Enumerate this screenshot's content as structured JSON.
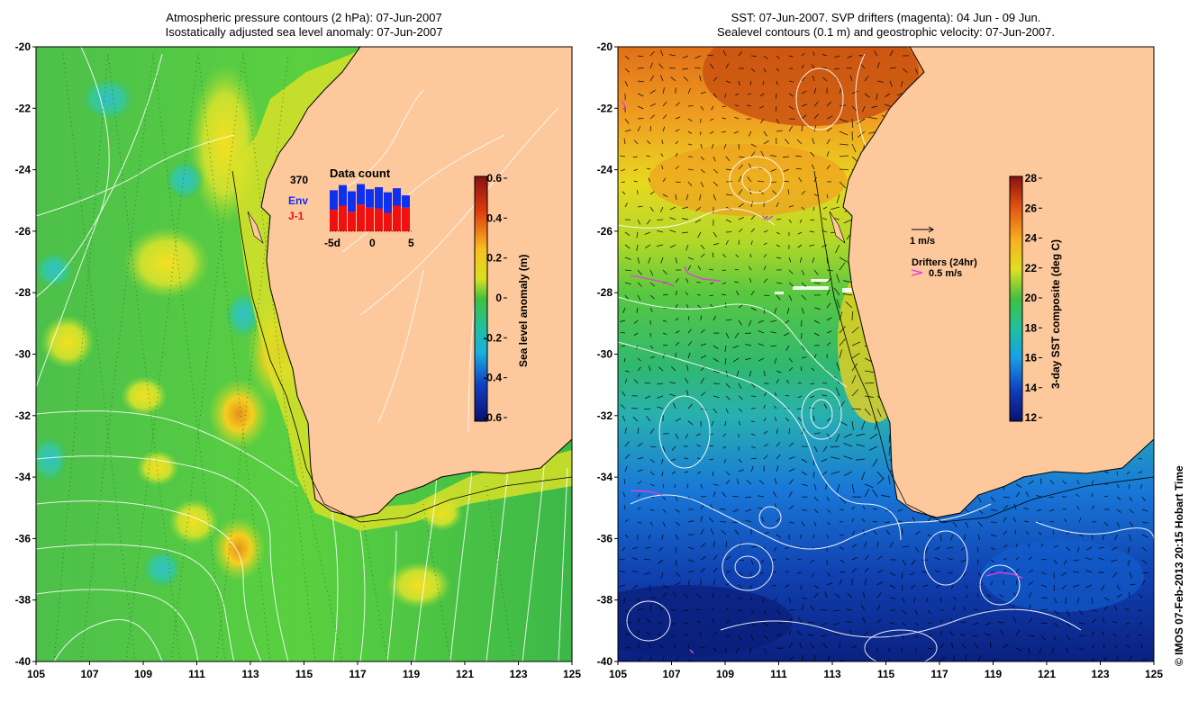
{
  "left_panel": {
    "title_line1": "Atmospheric pressure contours (2 hPa): 07-Jun-2007",
    "title_line2": "Isostatically adjusted sea level anomaly: 07-Jun-2007",
    "colorbar": {
      "label": "Sea level anomaly (m)",
      "ticks": [
        "0.6",
        "0.4",
        "0.2",
        "0",
        "-0.2",
        "-0.4",
        "-0.6"
      ]
    },
    "inset": {
      "title": "Data count",
      "max_label": "370",
      "legend_env": "Env",
      "legend_jason": "J-1",
      "x_ticks": [
        "-5d",
        "0",
        "5"
      ],
      "env_color": "#1030f0",
      "jason_color": "#f01010",
      "bars_total_fraction": [
        0.8,
        0.9,
        0.78,
        0.92,
        0.82,
        0.86,
        0.76,
        0.84,
        0.7
      ],
      "bars_jason_fraction": [
        0.42,
        0.5,
        0.38,
        0.52,
        0.46,
        0.44,
        0.36,
        0.5,
        0.46
      ]
    }
  },
  "right_panel": {
    "title_line1": "SST: 07-Jun-2007. SVP drifters (magenta): 04 Jun - 09 Jun.",
    "title_line2": "Sealevel contours (0.1 m) and geostrophic velocity: 07-Jun-2007.",
    "colorbar": {
      "label": "3-day SST composite (deg C)",
      "ticks": [
        "28",
        "26",
        "24",
        "22",
        "20",
        "18",
        "16",
        "14",
        "12"
      ]
    },
    "velocity_legend": "1 m/s",
    "drifters_legend_title": "Drifters (24hr)",
    "drifters_legend_value": "0.5 m/s"
  },
  "axes": {
    "lat_ticks": [
      "-20",
      "-22",
      "-24",
      "-26",
      "-28",
      "-30",
      "-32",
      "-34",
      "-36",
      "-38",
      "-40"
    ],
    "lon_ticks": [
      "105",
      "107",
      "109",
      "111",
      "113",
      "115",
      "117",
      "119",
      "121",
      "123",
      "125"
    ]
  },
  "credit": "© IMOS 07-Feb-2013 20:15 Hobart Time",
  "colors": {
    "land": "#fcc89c",
    "drifter": "#e040e0"
  }
}
